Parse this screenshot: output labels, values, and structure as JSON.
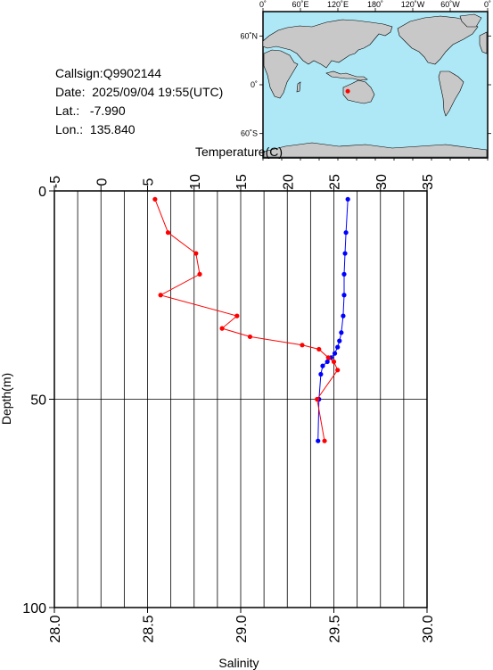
{
  "info": {
    "callsign": "Callsign:Q9902144",
    "date": "Date:  2025/09/04 19:55(UTC)",
    "lat": "Lat.:   -7.990",
    "lon": "Lon.:  135.840"
  },
  "map": {
    "lon_ticks": [
      "0˚",
      "60˚E",
      "120˚E",
      "180˚",
      "120˚W",
      "60˚W",
      "0˚"
    ],
    "lat_ticks": [
      "60˚N",
      "0˚",
      "60˚S"
    ],
    "ocean_color": "#aee8f6",
    "land_color": "#c8c8c8",
    "station_marker": {
      "lon": 135.84,
      "lat": -7.99,
      "color": "#ff0000"
    }
  },
  "chart_data": {
    "type": "line",
    "title": "",
    "xlabel_top": "Temperature(C)",
    "xlabel_bottom": "Salinity",
    "ylabel": "Depth(m)",
    "temperature_axis": {
      "range": [
        -5,
        35
      ],
      "ticks": [
        "-5",
        "0",
        "5",
        "10",
        "15",
        "20",
        "25",
        "30",
        "35"
      ]
    },
    "salinity_axis": {
      "range": [
        28.0,
        30.0
      ],
      "ticks": [
        "28.0",
        "28.5",
        "29.0",
        "29.5",
        "30.0"
      ]
    },
    "depth_axis": {
      "range": [
        0,
        100
      ],
      "inverted": true,
      "ticks": [
        "0",
        "50",
        "100"
      ]
    },
    "grid": true,
    "series": [
      {
        "name": "Temperature",
        "axis": "top",
        "color": "#0000ff",
        "points": [
          [
            26.5,
            2
          ],
          [
            26.3,
            10
          ],
          [
            26.2,
            15
          ],
          [
            26.1,
            20
          ],
          [
            26.1,
            25
          ],
          [
            26.0,
            30
          ],
          [
            25.8,
            34
          ],
          [
            25.6,
            36
          ],
          [
            25.4,
            37.5
          ],
          [
            25.1,
            39
          ],
          [
            24.7,
            40
          ],
          [
            24.3,
            41
          ],
          [
            23.8,
            42
          ],
          [
            23.6,
            44
          ],
          [
            23.4,
            50
          ],
          [
            23.3,
            60
          ]
        ]
      },
      {
        "name": "Salinity",
        "axis": "bottom",
        "color": "#ff0000",
        "points": [
          [
            28.54,
            2
          ],
          [
            28.61,
            10
          ],
          [
            28.76,
            15
          ],
          [
            28.78,
            20
          ],
          [
            28.57,
            25
          ],
          [
            28.98,
            30
          ],
          [
            28.9,
            33
          ],
          [
            29.05,
            35
          ],
          [
            29.33,
            37
          ],
          [
            29.42,
            38
          ],
          [
            29.47,
            40
          ],
          [
            29.5,
            41
          ],
          [
            29.52,
            43
          ],
          [
            29.41,
            50
          ],
          [
            29.45,
            60
          ]
        ]
      }
    ]
  }
}
